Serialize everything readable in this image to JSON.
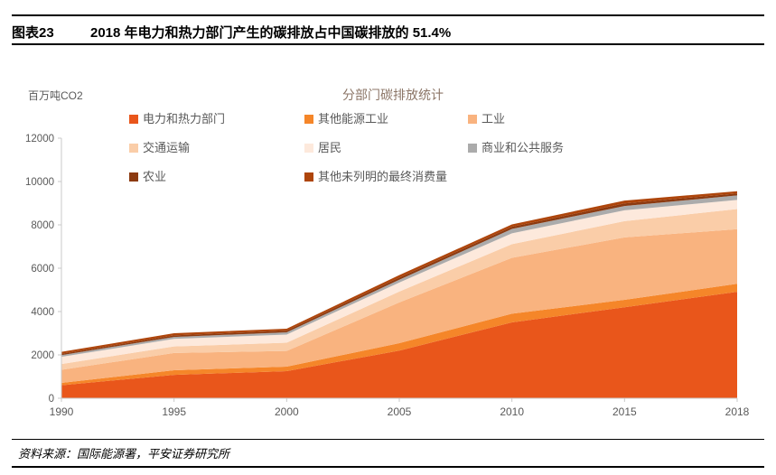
{
  "header": {
    "tag": "图表23",
    "title": "2018 年电力和热力部门产生的碳排放占中国碳排放的 51.4%"
  },
  "footer": {
    "source": "资料来源：国际能源署，平安证券研究所"
  },
  "chart_data": {
    "type": "area",
    "stacked": true,
    "title": "分部门碳排放统计",
    "unit_label": "百万吨CO2",
    "xlabel": "",
    "ylabel": "百万吨CO2",
    "x": [
      1990,
      1995,
      2000,
      2005,
      2010,
      2015,
      2018
    ],
    "x_tick_labels": [
      "1990",
      "1995",
      "2000",
      "2005",
      "2010",
      "2015",
      "2018"
    ],
    "ylim": [
      0,
      12000
    ],
    "ytick_step": 2000,
    "grid": false,
    "legend_position": "top",
    "series": [
      {
        "name": "电力和热力部门",
        "color": "#E9561B",
        "values": [
          600,
          1080,
          1250,
          2200,
          3500,
          4200,
          4910
        ]
      },
      {
        "name": "其他能源工业",
        "color": "#F58629",
        "values": [
          110,
          210,
          210,
          340,
          400,
          340,
          370
        ]
      },
      {
        "name": "工业",
        "color": "#F9B37F",
        "values": [
          600,
          800,
          720,
          1880,
          2580,
          2880,
          2520
        ]
      },
      {
        "name": "交通运输",
        "color": "#FACDA8",
        "values": [
          270,
          300,
          380,
          500,
          630,
          750,
          930
        ]
      },
      {
        "name": "居民",
        "color": "#FDE9DC",
        "values": [
          330,
          350,
          380,
          420,
          500,
          500,
          420
        ]
      },
      {
        "name": "商业和公共服务",
        "color": "#ABABAB",
        "values": [
          80,
          90,
          100,
          130,
          200,
          200,
          210
        ]
      },
      {
        "name": "农业",
        "color": "#8C3A10",
        "values": [
          60,
          70,
          80,
          100,
          100,
          120,
          90
        ]
      },
      {
        "name": "其他未列明的最终消费量",
        "color": "#AE450B",
        "values": [
          90,
          100,
          90,
          110,
          110,
          130,
          100
        ]
      }
    ],
    "totals_2018_share_power_heat": "51.4%",
    "axis_color": "#C9C9C9",
    "tick_label_color": "#595959"
  }
}
